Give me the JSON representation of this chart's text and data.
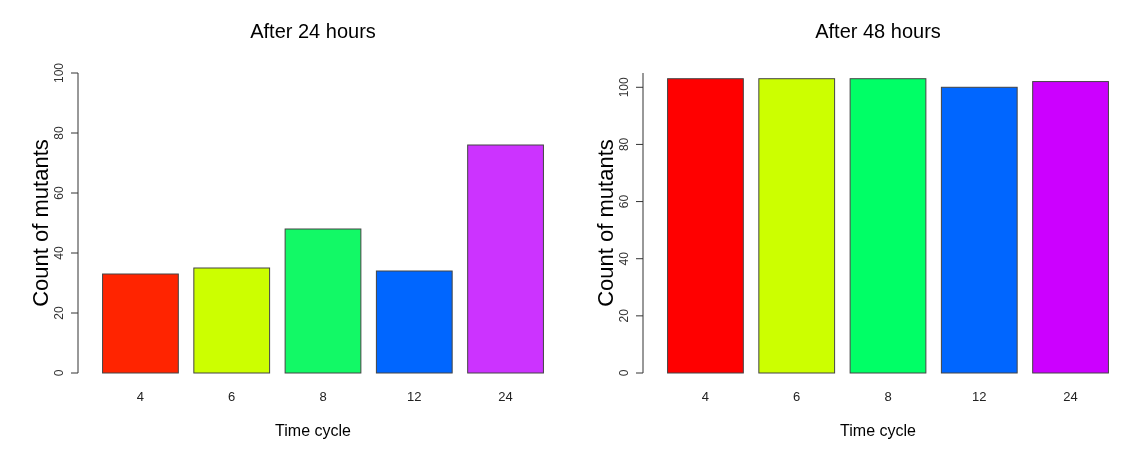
{
  "chart_data": [
    {
      "type": "bar",
      "title": "After 24 hours",
      "xlabel": "Time cycle",
      "ylabel": "Count of mutants",
      "categories": [
        "4",
        "6",
        "8",
        "12",
        "24"
      ],
      "values": [
        33,
        35,
        48,
        34,
        76
      ],
      "colors": [
        "#ff2400",
        "#ccff00",
        "#12f966",
        "#0066ff",
        "#cc33ff"
      ],
      "ylim": [
        0,
        100
      ],
      "yticks": [
        0,
        20,
        40,
        60,
        80,
        100
      ]
    },
    {
      "type": "bar",
      "title": "After 48 hours",
      "xlabel": "Time cycle",
      "ylabel": "Count of mutants",
      "categories": [
        "4",
        "6",
        "8",
        "12",
        "24"
      ],
      "values": [
        103,
        103,
        103,
        100,
        102
      ],
      "colors": [
        "#ff0000",
        "#ccff00",
        "#00ff66",
        "#0066ff",
        "#cc00ff"
      ],
      "ylim": [
        0,
        105
      ],
      "yticks": [
        0,
        20,
        40,
        60,
        80,
        100
      ]
    }
  ]
}
